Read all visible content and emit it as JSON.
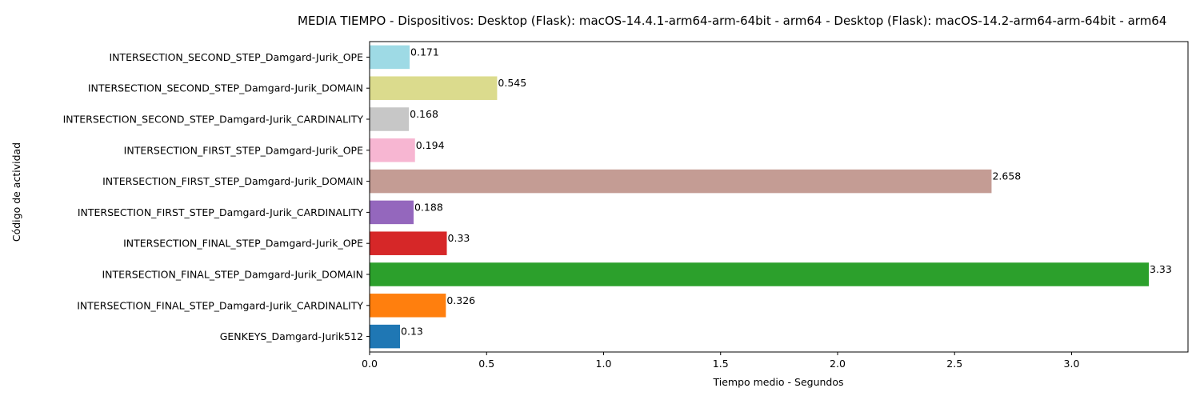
{
  "chart_data": {
    "type": "bar",
    "orientation": "horizontal",
    "title": "MEDIA TIEMPO - Dispositivos: Desktop (Flask): macOS-14.4.1-arm64-arm-64bit - arm64 - Desktop (Flask): macOS-14.2-arm64-arm-64bit - arm64",
    "xlabel": "Tiempo medio - Segundos",
    "ylabel": "Código de actividad",
    "xlim": [
      0,
      3.5
    ],
    "xticks": [
      "0.0",
      "0.5",
      "1.0",
      "1.5",
      "2.0",
      "2.5",
      "3.0"
    ],
    "xtick_values": [
      0,
      0.5,
      1.0,
      1.5,
      2.0,
      2.5,
      3.0
    ],
    "grid": false,
    "categories": [
      "GENKEYS_Damgard-Jurik512",
      "INTERSECTION_FINAL_STEP_Damgard-Jurik_CARDINALITY",
      "INTERSECTION_FINAL_STEP_Damgard-Jurik_DOMAIN",
      "INTERSECTION_FINAL_STEP_Damgard-Jurik_OPE",
      "INTERSECTION_FIRST_STEP_Damgard-Jurik_CARDINALITY",
      "INTERSECTION_FIRST_STEP_Damgard-Jurik_DOMAIN",
      "INTERSECTION_FIRST_STEP_Damgard-Jurik_OPE",
      "INTERSECTION_SECOND_STEP_Damgard-Jurik_CARDINALITY",
      "INTERSECTION_SECOND_STEP_Damgard-Jurik_DOMAIN",
      "INTERSECTION_SECOND_STEP_Damgard-Jurik_OPE"
    ],
    "values": [
      0.13,
      0.326,
      3.33,
      0.33,
      0.188,
      2.658,
      0.194,
      0.168,
      0.545,
      0.171
    ],
    "value_labels": [
      "0.13",
      "0.326",
      "3.33",
      "0.33",
      "0.188",
      "2.658",
      "0.194",
      "0.168",
      "0.545",
      "0.171"
    ],
    "colors": [
      "#1f77b4",
      "#ff7f0e",
      "#2ca02c",
      "#d62728",
      "#9467bd",
      "#c49c94",
      "#f7b6d2",
      "#c7c7c7",
      "#dbdb8d",
      "#9edae5"
    ]
  }
}
